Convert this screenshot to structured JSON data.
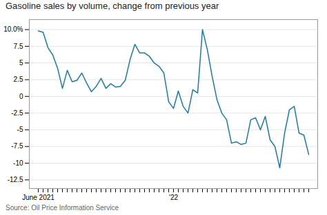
{
  "chart_data": {
    "type": "line",
    "title": "Gasoline sales by volume, change from previous year",
    "source": "Source: Oil Price Information Service",
    "categories": [
      "June 2021",
      null,
      null,
      null,
      null,
      null,
      null,
      null,
      null,
      null,
      null,
      null,
      null,
      null,
      null,
      null,
      null,
      null,
      null,
      null,
      null,
      null,
      null,
      null,
      null,
      null,
      null,
      null,
      "'22",
      null,
      null,
      null,
      null,
      null,
      null,
      null,
      null,
      null,
      null,
      null,
      null,
      null,
      null,
      null,
      null,
      null,
      null,
      null,
      null,
      null,
      null,
      null,
      null,
      null,
      null,
      null,
      null
    ],
    "values": [
      9.8,
      9.6,
      7.3,
      6.2,
      4.2,
      1.2,
      3.9,
      2.2,
      2.4,
      3.5,
      2.0,
      0.7,
      1.5,
      2.7,
      1.2,
      1.9,
      1.4,
      1.5,
      2.4,
      5.5,
      7.8,
      6.5,
      6.5,
      6.0,
      5.0,
      4.5,
      3.5,
      -0.8,
      -1.8,
      0.8,
      -1.5,
      -2.5,
      1.0,
      0.5,
      10.0,
      7.0,
      3.0,
      -0.5,
      -2.5,
      -3.5,
      -7.0,
      -6.8,
      -7.2,
      -7.0,
      -3.5,
      -3.2,
      -5.0,
      -3.0,
      -6.5,
      -7.5,
      -10.7,
      -5.5,
      -2.0,
      -1.5,
      -5.5,
      -5.8,
      -8.7
    ],
    "color": "#1a7aaa",
    "ylim": [
      -13.8,
      11.5
    ],
    "yticks": [
      {
        "value": 10.0,
        "label": "10.0%"
      },
      7.5,
      5,
      2.5,
      0,
      -2.5,
      -5,
      -7.5,
      -10,
      -12.5
    ],
    "grid": true
  }
}
